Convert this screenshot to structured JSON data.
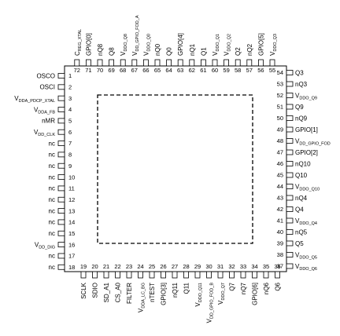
{
  "package": {
    "left_pins": [
      {
        "num": "1",
        "name": "OSCO"
      },
      {
        "num": "2",
        "name": "OSCI"
      },
      {
        "num": "3",
        "name": "VDDA_PDCP_XTAL",
        "base": "V",
        "sub": "DDA_PDCP_XTAL"
      },
      {
        "num": "4",
        "name": "VDDA_FB",
        "base": "V",
        "sub": "DDA_FB"
      },
      {
        "num": "5",
        "name": "nMR"
      },
      {
        "num": "6",
        "name": "VDD_CLK",
        "base": "V",
        "sub": "DD_CLK"
      },
      {
        "num": "7",
        "name": "nc"
      },
      {
        "num": "8",
        "name": "nc"
      },
      {
        "num": "9",
        "name": "nc"
      },
      {
        "num": "10",
        "name": "nc"
      },
      {
        "num": "11",
        "name": "nc"
      },
      {
        "num": "12",
        "name": "nc"
      },
      {
        "num": "13",
        "name": "nc"
      },
      {
        "num": "14",
        "name": "nc"
      },
      {
        "num": "15",
        "name": "nc"
      },
      {
        "num": "16",
        "name": "VDD_DIG",
        "base": "V",
        "sub": "DD_DIG"
      },
      {
        "num": "17",
        "name": "nc"
      },
      {
        "num": "18",
        "name": "nc"
      }
    ],
    "bottom_pins": [
      {
        "num": "19",
        "name": "SCLK"
      },
      {
        "num": "20",
        "name": "SDIO"
      },
      {
        "num": "21",
        "name": "SD_A1"
      },
      {
        "num": "22",
        "name": "CS_A0"
      },
      {
        "num": "23",
        "name": "FILTER"
      },
      {
        "num": "24",
        "name": "VDDA_LC_BG",
        "base": "V",
        "sub": "DDA_LC_BG"
      },
      {
        "num": "25",
        "name": "nTEST"
      },
      {
        "num": "26",
        "name": "GPIO[3]"
      },
      {
        "num": "27",
        "name": "nQ11"
      },
      {
        "num": "28",
        "name": "Q11"
      },
      {
        "num": "29",
        "name": "VDDO_Q11",
        "base": "V",
        "sub": "DDO_Q11"
      },
      {
        "num": "30",
        "name": "VDD_GPIO_FOD_B",
        "base": "V",
        "sub": "DD_GPIO_FOD_B"
      },
      {
        "num": "31",
        "name": "VDDO_Q7",
        "base": "V",
        "sub": "DDO_Q7"
      },
      {
        "num": "32",
        "name": "Q7"
      },
      {
        "num": "33",
        "name": "nQ7"
      },
      {
        "num": "34",
        "name": "GPIO[6]"
      },
      {
        "num": "35",
        "name": "nQ6"
      },
      {
        "num": "36",
        "name": "Q6"
      }
    ],
    "right_pins": [
      {
        "num": "37",
        "name": "VDDO_Q6",
        "base": "V",
        "sub": "DDO_Q6"
      },
      {
        "num": "38",
        "name": "VDDO_Q5",
        "base": "V",
        "sub": "DDO_Q5"
      },
      {
        "num": "39",
        "name": "Q5"
      },
      {
        "num": "40",
        "name": "nQ5"
      },
      {
        "num": "41",
        "name": "VDDO_Q4",
        "base": "V",
        "sub": "DDO_Q4"
      },
      {
        "num": "42",
        "name": "Q4"
      },
      {
        "num": "43",
        "name": "nQ4"
      },
      {
        "num": "44",
        "name": "VDDO_Q10",
        "base": "V",
        "sub": "DDO_Q10"
      },
      {
        "num": "45",
        "name": "Q10"
      },
      {
        "num": "46",
        "name": "nQ10"
      },
      {
        "num": "47",
        "name": "GPIO[2]"
      },
      {
        "num": "48",
        "name": "VDD_GPIO_FOD",
        "base": "V",
        "sub": "DD_GPIO_FOD"
      },
      {
        "num": "49",
        "name": "GPIO[1]"
      },
      {
        "num": "50",
        "name": "nQ9"
      },
      {
        "num": "51",
        "name": "Q9"
      },
      {
        "num": "52",
        "name": "VDDO_Q9",
        "base": "V",
        "sub": "DDO_Q9"
      },
      {
        "num": "53",
        "name": "nQ3"
      },
      {
        "num": "54",
        "name": "Q3"
      }
    ],
    "top_pins": [
      {
        "num": "55",
        "name": "VDDO_Q3",
        "base": "V",
        "sub": "DDO_Q3"
      },
      {
        "num": "56",
        "name": "GPIO[5]"
      },
      {
        "num": "57",
        "name": "nQ2"
      },
      {
        "num": "58",
        "name": "Q2"
      },
      {
        "num": "59",
        "name": "VDDO_Q2",
        "base": "V",
        "sub": "DDO_Q2"
      },
      {
        "num": "60",
        "name": "VDDO_Q1",
        "base": "V",
        "sub": "DDO_Q1"
      },
      {
        "num": "61",
        "name": "Q1"
      },
      {
        "num": "62",
        "name": "nQ1"
      },
      {
        "num": "63",
        "name": "GPIO[4]"
      },
      {
        "num": "64",
        "name": "Q0"
      },
      {
        "num": "65",
        "name": "nQ0"
      },
      {
        "num": "66",
        "name": "VDDO_Q0",
        "base": "V",
        "sub": "DDO_Q0"
      },
      {
        "num": "67",
        "name": "VDD_GPIO_FOD_A",
        "base": "V",
        "sub": "DD_GPIO_FOD_A"
      },
      {
        "num": "68",
        "name": "VDDO_Q8",
        "base": "V",
        "sub": "DDO_Q8"
      },
      {
        "num": "69",
        "name": "Q8"
      },
      {
        "num": "70",
        "name": "nQ8"
      },
      {
        "num": "71",
        "name": "GPIO[0]"
      },
      {
        "num": "72",
        "name": "CREG_XTAL",
        "base": "C",
        "sub": "REG_XTAL"
      }
    ]
  }
}
